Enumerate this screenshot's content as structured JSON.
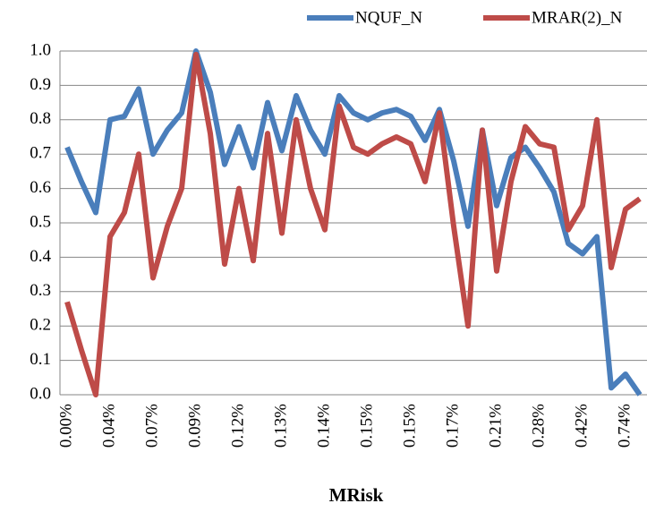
{
  "chart_data": {
    "type": "line",
    "x_label": "MRisk",
    "categories": [
      "0.00%",
      null,
      null,
      "0.04%",
      null,
      null,
      "0.07%",
      null,
      null,
      "0.09%",
      null,
      null,
      "0.12%",
      null,
      null,
      "0.13%",
      null,
      null,
      "0.14%",
      null,
      null,
      "0.15%",
      null,
      null,
      "0.15%",
      null,
      null,
      "0.17%",
      null,
      null,
      "0.21%",
      null,
      null,
      "0.28%",
      null,
      null,
      "0.42%",
      null,
      null,
      "0.74%",
      null
    ],
    "series": [
      {
        "name": "NQUF_N",
        "color": "#4a7ebb",
        "values": [
          0.72,
          0.62,
          0.53,
          0.8,
          0.81,
          0.89,
          0.7,
          0.77,
          0.82,
          1.0,
          0.88,
          0.67,
          0.78,
          0.66,
          0.85,
          0.71,
          0.87,
          0.77,
          0.7,
          0.87,
          0.82,
          0.8,
          0.82,
          0.83,
          0.81,
          0.74,
          0.83,
          0.68,
          0.49,
          0.77,
          0.55,
          0.69,
          0.72,
          0.66,
          0.59,
          0.44,
          0.41,
          0.46,
          0.02,
          0.06,
          0.0
        ]
      },
      {
        "name": "MRAR(2)_N",
        "color": "#be4b48",
        "values": [
          0.27,
          0.13,
          0.0,
          0.46,
          0.53,
          0.7,
          0.34,
          0.49,
          0.6,
          0.99,
          0.76,
          0.38,
          0.6,
          0.39,
          0.76,
          0.47,
          0.8,
          0.6,
          0.48,
          0.84,
          0.72,
          0.7,
          0.73,
          0.75,
          0.73,
          0.62,
          0.82,
          0.49,
          0.2,
          0.77,
          0.36,
          0.62,
          0.78,
          0.73,
          0.72,
          0.48,
          0.55,
          0.8,
          0.37,
          0.54,
          0.57
        ]
      }
    ],
    "ylim": [
      0,
      1
    ],
    "yticks": [
      {
        "value": 0,
        "label": "0.0"
      },
      0.1,
      0.2,
      0.3,
      0.4,
      0.5,
      0.6,
      0.7,
      0.8,
      0.9,
      {
        "value": 1,
        "label": "1.0"
      }
    ],
    "grid": true
  }
}
